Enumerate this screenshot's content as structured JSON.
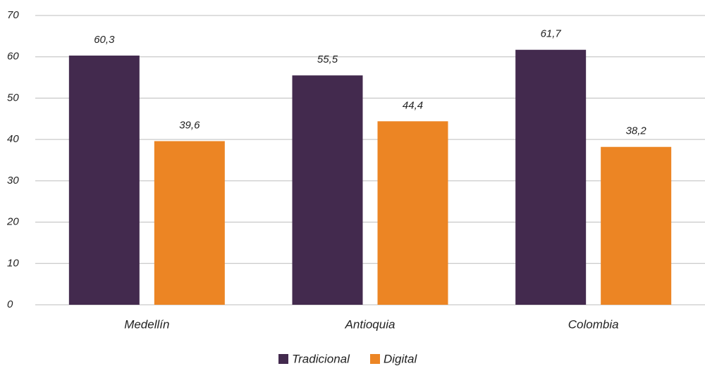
{
  "chart_data": {
    "type": "bar",
    "categories": [
      "Medellín",
      "Antioquia",
      "Colombia"
    ],
    "series": [
      {
        "name": "Tradicional",
        "color": "#432a4e",
        "values": [
          60.3,
          55.5,
          61.7
        ],
        "value_labels": [
          "60,3",
          "55,5",
          "61,7"
        ]
      },
      {
        "name": "Digital",
        "color": "#ec8524",
        "values": [
          39.6,
          44.4,
          38.2
        ],
        "value_labels": [
          "39,6",
          "44,4",
          "38,2"
        ]
      }
    ],
    "ylim": [
      0,
      70
    ],
    "yticks": [
      0,
      10,
      20,
      30,
      40,
      50,
      60,
      70
    ],
    "grid": true,
    "legend": "bottom"
  }
}
